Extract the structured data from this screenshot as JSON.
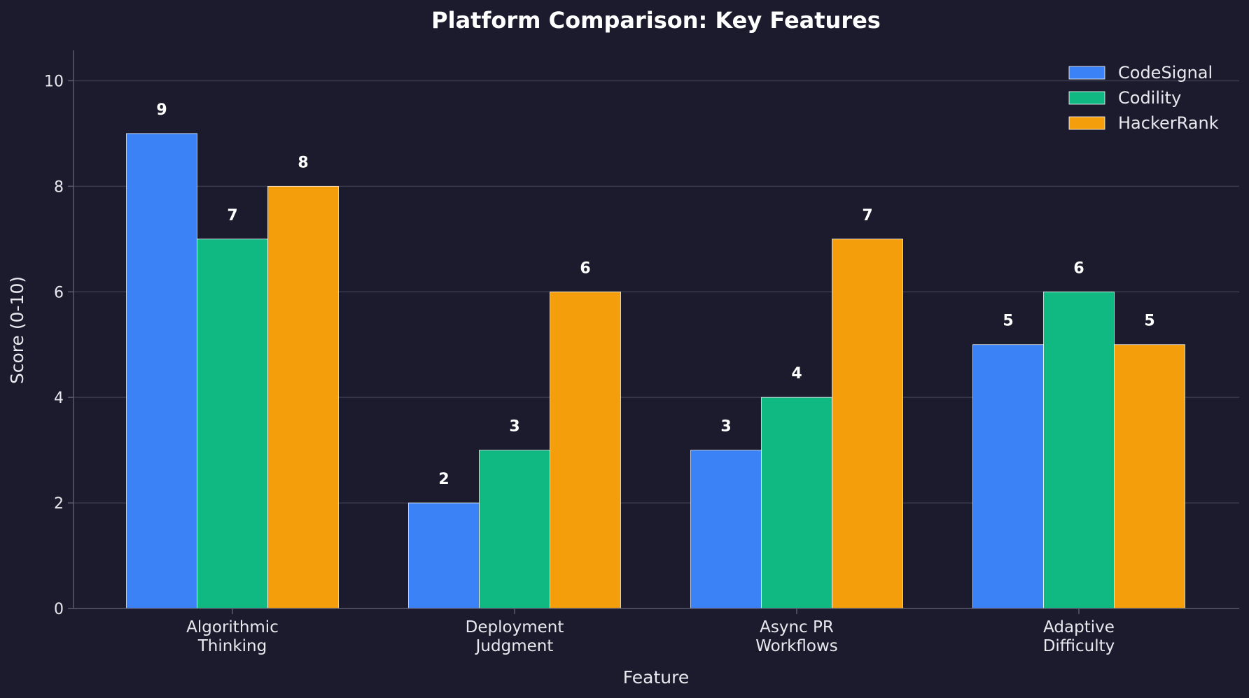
{
  "chart_data": {
    "type": "bar",
    "title": "Platform Comparison: Key Features",
    "xlabel": "Feature",
    "ylabel": "Score (0-10)",
    "ylim": [
      0,
      11
    ],
    "yticks": [
      0,
      2,
      4,
      6,
      8,
      10
    ],
    "grid": true,
    "legend_position": "top-right",
    "categories": [
      [
        "Algorithmic",
        "Thinking"
      ],
      [
        "Deployment",
        "Judgment"
      ],
      [
        "Async PR",
        "Workflows"
      ],
      [
        "Adaptive",
        "Difficulty"
      ]
    ],
    "series": [
      {
        "name": "CodeSignal",
        "color": "#3b82f6",
        "values": [
          9,
          2,
          3,
          5
        ]
      },
      {
        "name": "Codility",
        "color": "#10b981",
        "values": [
          7,
          3,
          4,
          6
        ]
      },
      {
        "name": "HackerRank",
        "color": "#f59e0b",
        "values": [
          8,
          6,
          7,
          5
        ]
      }
    ]
  },
  "colors": {
    "background": "#1b1b2d",
    "grid": "#3a3a4e",
    "axis": "#5a5a6e",
    "text": "#e8e8ee"
  }
}
